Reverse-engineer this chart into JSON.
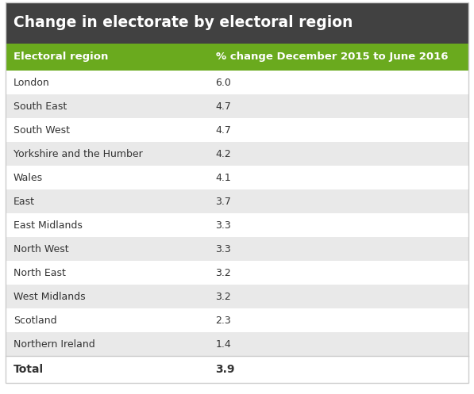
{
  "title": "Change in electorate by electoral region",
  "title_bg_color": "#414141",
  "title_text_color": "#ffffff",
  "header_col1": "Electoral region",
  "header_col2": "% change December 2015 to June 2016",
  "header_bg_color": "#6aaa1e",
  "header_text_color": "#ffffff",
  "rows": [
    [
      "London",
      "6.0"
    ],
    [
      "South East",
      "4.7"
    ],
    [
      "South West",
      "4.7"
    ],
    [
      "Yorkshire and the Humber",
      "4.2"
    ],
    [
      "Wales",
      "4.1"
    ],
    [
      "East",
      "3.7"
    ],
    [
      "East Midlands",
      "3.3"
    ],
    [
      "North West",
      "3.3"
    ],
    [
      "North East",
      "3.2"
    ],
    [
      "West Midlands",
      "3.2"
    ],
    [
      "Scotland",
      "2.3"
    ],
    [
      "Northern Ireland",
      "1.4"
    ]
  ],
  "total_label": "Total",
  "total_value": "3.9",
  "row_colors": [
    "#ffffff",
    "#e9e9e9"
  ],
  "total_bg_color": "#ffffff",
  "text_color": "#333333",
  "border_color": "#cccccc",
  "fig_bg_color": "#ffffff",
  "title_fontsize": 13.5,
  "header_fontsize": 9.5,
  "data_fontsize": 9,
  "total_fontsize": 10,
  "col_split": 0.44
}
